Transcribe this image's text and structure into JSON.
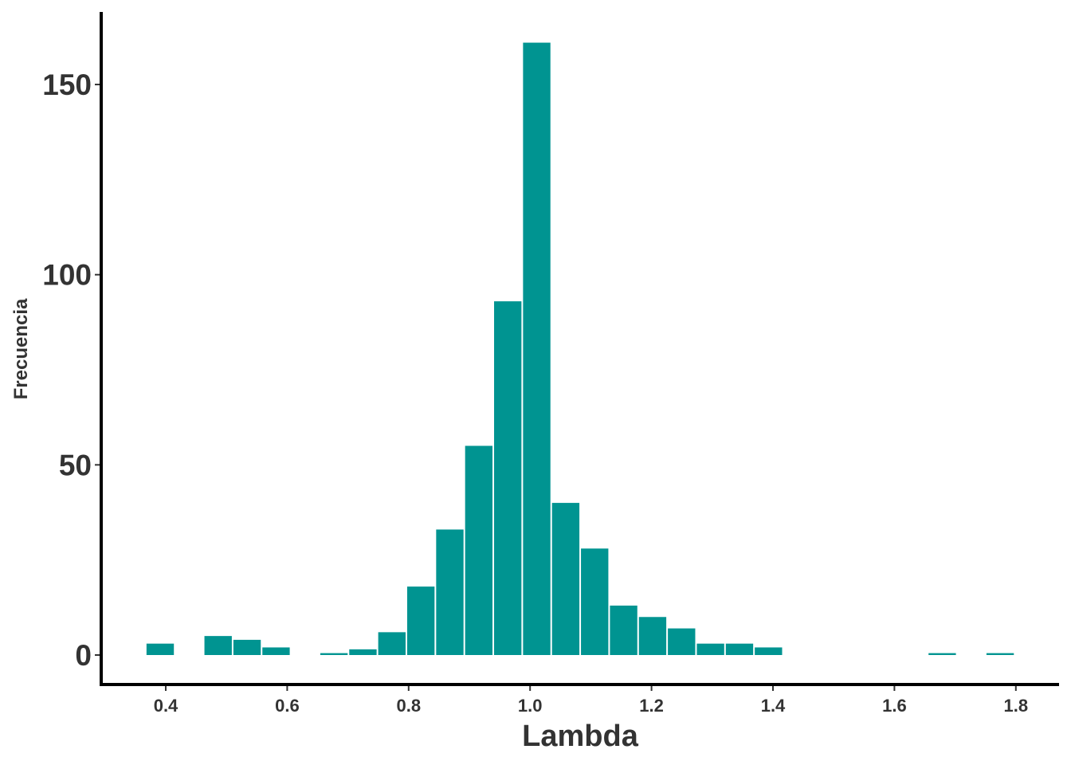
{
  "chart_data": {
    "type": "bar",
    "subtype": "histogram",
    "title": "",
    "xlabel": "Lambda",
    "ylabel": "Frecuencia",
    "xlim": [
      0.3,
      1.87
    ],
    "ylim": [
      -8,
      169
    ],
    "bin_start": 0.367,
    "bin_width": 0.0477,
    "counts": [
      3,
      0,
      5,
      4,
      2,
      0,
      0.5,
      1.5,
      6,
      18,
      33,
      55,
      93,
      161,
      40,
      28,
      13,
      10,
      7,
      3,
      3,
      2,
      0,
      0,
      0,
      0,
      0,
      0.5,
      0,
      0.5
    ],
    "fill_color": "#009491",
    "xticks": [
      "0.4",
      "0.6",
      "0.8",
      "1.0",
      "1.2",
      "1.4",
      "1.6",
      "1.8"
    ],
    "xtick_values": [
      0.4,
      0.6,
      0.8,
      1.0,
      1.2,
      1.4,
      1.6,
      1.8
    ],
    "yticks": [
      "0",
      "50",
      "100",
      "150"
    ],
    "ytick_values": [
      0,
      50,
      100,
      150
    ],
    "grid": false
  }
}
